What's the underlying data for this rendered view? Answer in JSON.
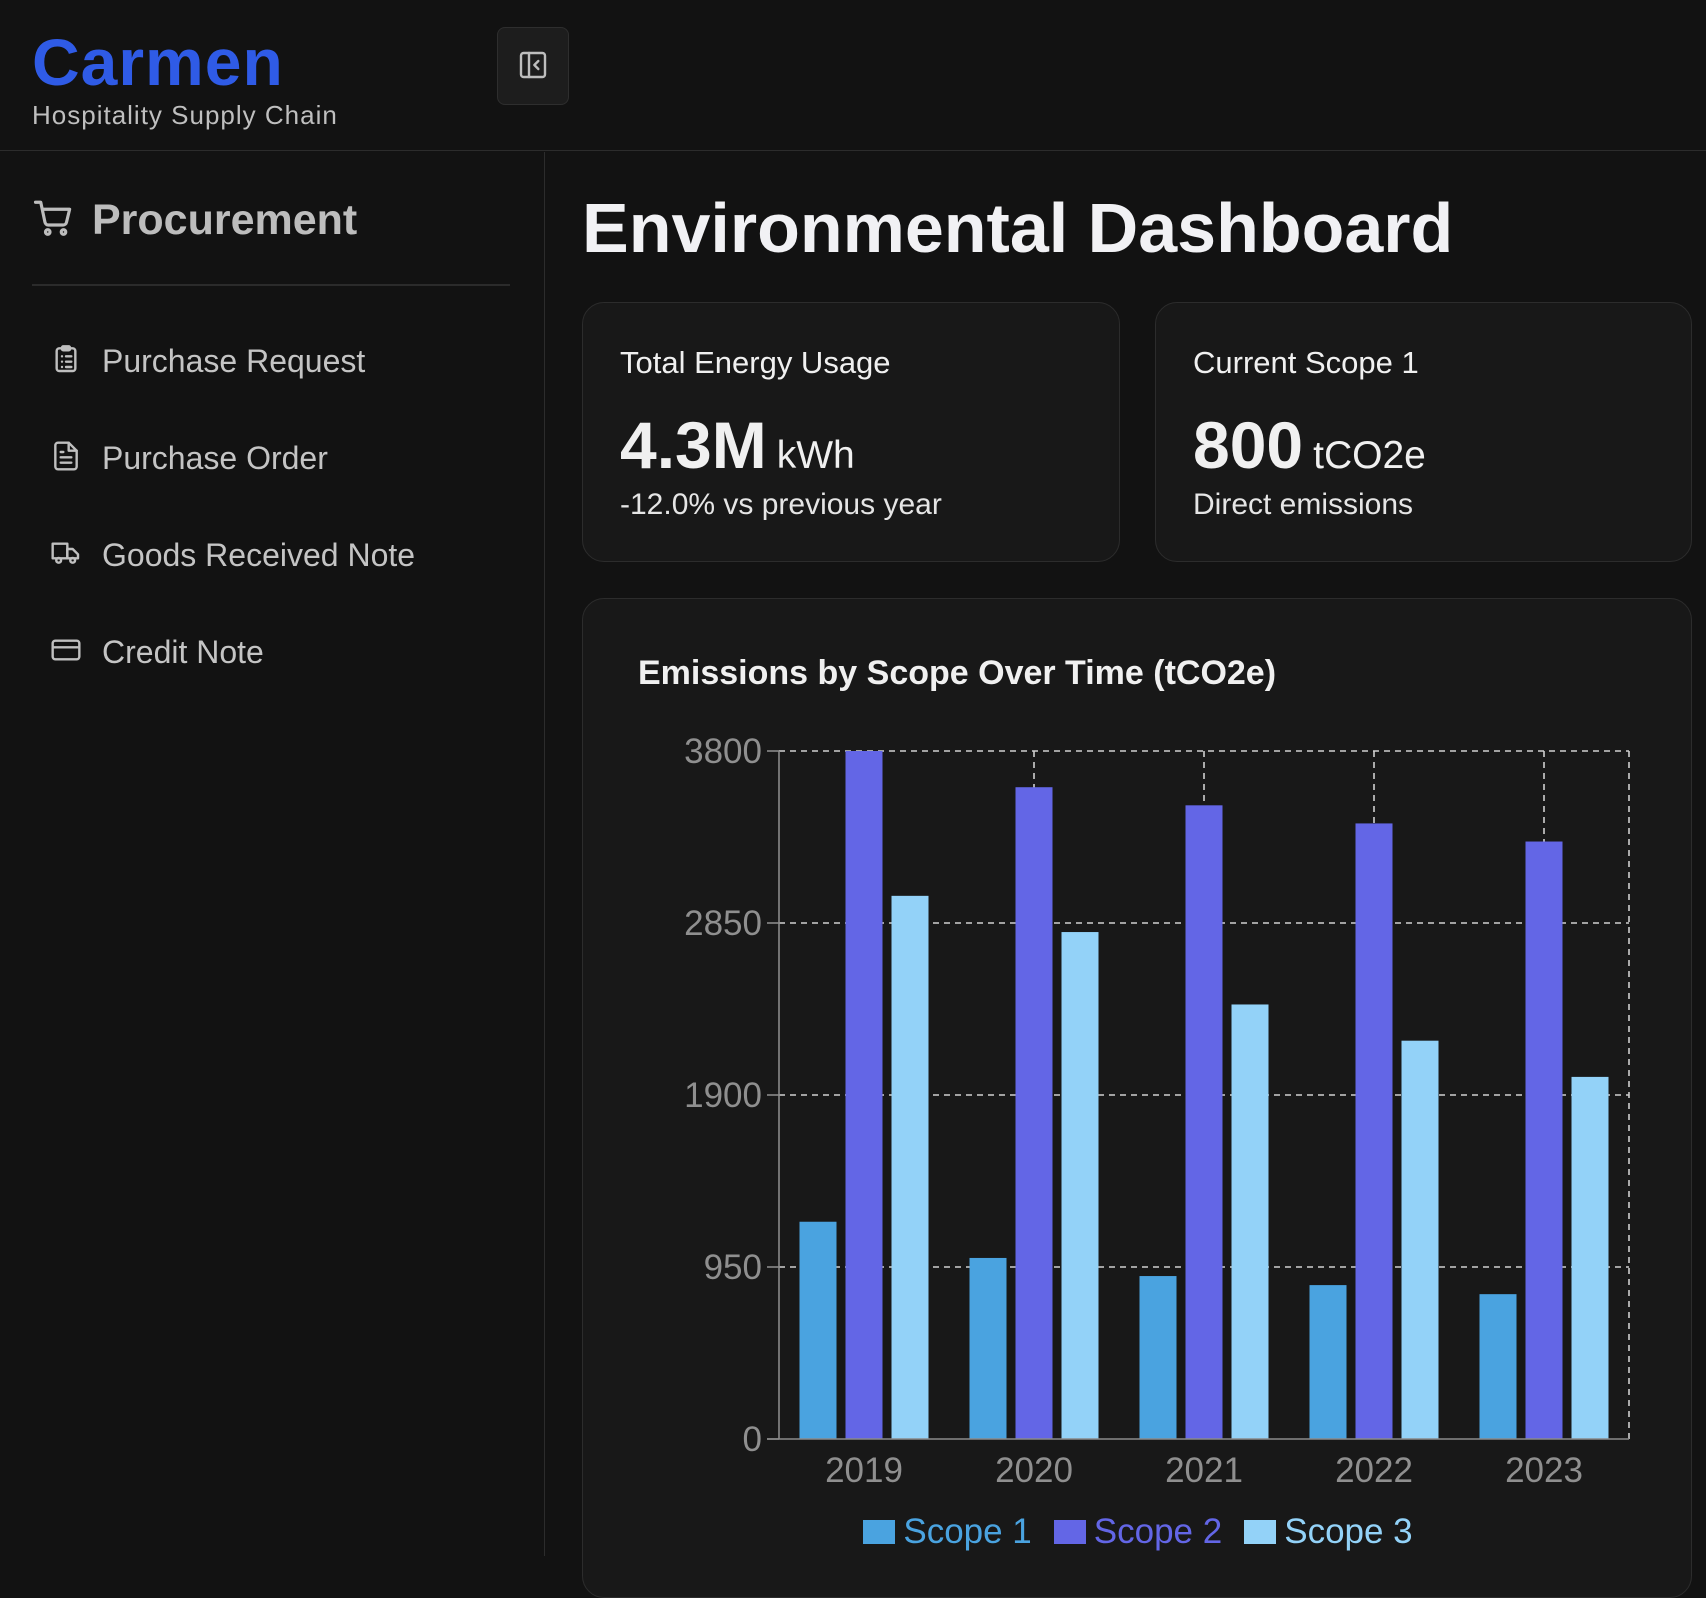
{
  "app": {
    "brand": "Carmen",
    "tagline": "Hospitality Supply Chain"
  },
  "sidebar": {
    "section_title": "Procurement",
    "section_icon": "shopping-cart-icon",
    "collapse_icon": "panel-collapse-icon",
    "items": [
      {
        "label": "Purchase Request",
        "icon": "clipboard-list-icon"
      },
      {
        "label": "Purchase Order",
        "icon": "file-text-icon"
      },
      {
        "label": "Goods Received Note",
        "icon": "truck-icon"
      },
      {
        "label": "Credit Note",
        "icon": "credit-card-icon"
      }
    ]
  },
  "main": {
    "title": "Environmental Dashboard",
    "cards": [
      {
        "label": "Total Energy Usage",
        "value": "4.3M",
        "unit": "kWh",
        "subtext": "-12.0% vs previous year"
      },
      {
        "label": "Current Scope 1",
        "value": "800",
        "unit": "tCO2e",
        "subtext": "Direct emissions"
      }
    ],
    "chart_title": "Emissions by Scope Over Time (tCO2e)"
  },
  "colors": {
    "brand": "#2f5be6",
    "scope1": "#4aa3e0",
    "scope2": "#6366e6",
    "scope3": "#93d2f8"
  },
  "chart_data": {
    "type": "bar",
    "title": "Emissions by Scope Over Time (tCO2e)",
    "categories": [
      "2019",
      "2020",
      "2021",
      "2022",
      "2023"
    ],
    "series": [
      {
        "name": "Scope 1",
        "color": "#4aa3e0",
        "values": [
          1200,
          1000,
          900,
          850,
          800
        ]
      },
      {
        "name": "Scope 2",
        "color": "#6366e6",
        "values": [
          3800,
          3600,
          3500,
          3400,
          3300
        ]
      },
      {
        "name": "Scope 3",
        "color": "#93d2f8",
        "values": [
          3000,
          2800,
          2400,
          2200,
          2000
        ]
      }
    ],
    "yticks": [
      0,
      950,
      1900,
      2850,
      3800
    ],
    "ylim": [
      0,
      3800
    ],
    "grid": true,
    "legend_position": "bottom-center"
  }
}
